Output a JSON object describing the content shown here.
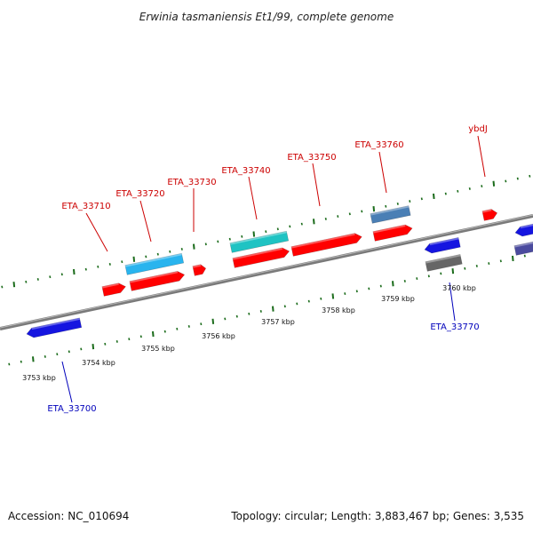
{
  "title": "Erwinia tasmaniensis Et1/99, complete genome",
  "colors": {
    "forward": "#ff0000",
    "reverse": "#0000ff",
    "backbone": "#888888",
    "ticks": "#1a6b1a",
    "label_forward": "#cc0000",
    "label_reverse": "#0000bb"
  },
  "scale": {
    "ticks": [
      {
        "label": "3753 kbp"
      },
      {
        "label": "3754 kbp"
      },
      {
        "label": "3755 kbp"
      },
      {
        "label": "3756 kbp"
      },
      {
        "label": "3757 kbp"
      },
      {
        "label": "3758 kbp"
      },
      {
        "label": "3759 kbp"
      },
      {
        "label": "3760 kbp"
      }
    ]
  },
  "genes": [
    {
      "name": "ETA_33700",
      "strand": "reverse",
      "color": "#1515e0"
    },
    {
      "name": "ETA_33710",
      "strand": "forward",
      "color": "#ff0000"
    },
    {
      "name": "ETA_33720",
      "strand": "forward",
      "color": "#ff0000"
    },
    {
      "name": "ETA_33730",
      "strand": "forward",
      "color": "#ff0000"
    },
    {
      "name": "ETA_33740",
      "strand": "forward",
      "color": "#ff0000"
    },
    {
      "name": "ETA_33750",
      "strand": "forward",
      "color": "#ff0000"
    },
    {
      "name": "ETA_33760",
      "strand": "forward",
      "color": "#ff0000"
    },
    {
      "name": "ybdJ",
      "strand": "forward",
      "color": "#ff0000"
    },
    {
      "name": "ETA_33770",
      "strand": "reverse",
      "color": "#1515e0"
    }
  ],
  "features": [
    {
      "kind": "cds-feature",
      "color": "#29b4ee"
    },
    {
      "kind": "cds-feature",
      "color": "#1fc3c3"
    },
    {
      "kind": "cds-feature",
      "color": "#4a7fb5"
    },
    {
      "kind": "cds-feature",
      "color": "#666666"
    },
    {
      "kind": "cds-feature",
      "color": "#4b4b9e"
    },
    {
      "kind": "cds-feature",
      "color": "#1515e0"
    }
  ],
  "footer": {
    "accession": "Accession: NC_010694",
    "summary": "Topology: circular; Length: 3,883,467 bp; Genes: 3,535"
  }
}
